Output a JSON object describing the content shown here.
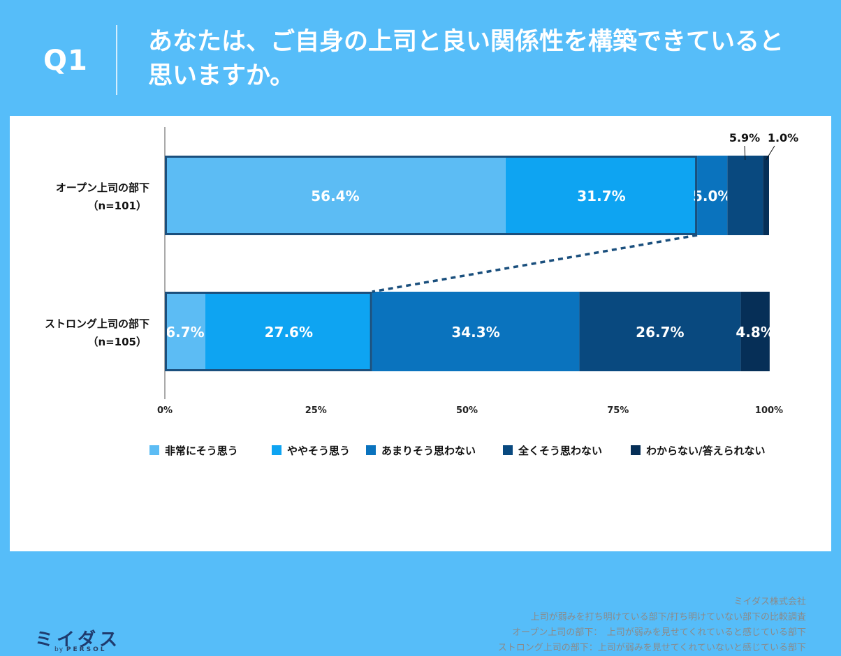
{
  "header": {
    "question_label": "Q1",
    "question_line1": "あなたは、ご自身の上司と良い関係性を構築できていると",
    "question_line2": "思いますか。"
  },
  "colors": {
    "background": "#56bdf9",
    "series": [
      "#5cbcf4",
      "#0ea4f2",
      "#0a73be",
      "#09497f",
      "#062f57"
    ],
    "outline": "#1a4f7d"
  },
  "chart_data": {
    "type": "bar",
    "orientation": "horizontal",
    "stacked": true,
    "categories": [
      {
        "name": "オープン上司の部下",
        "n": "（n=101）"
      },
      {
        "name": "ストロング上司の部下",
        "n": "（n=105）"
      }
    ],
    "series": [
      {
        "name": "非常にそう思う",
        "values": [
          56.4,
          6.7
        ]
      },
      {
        "name": "ややそう思う",
        "values": [
          31.7,
          27.6
        ]
      },
      {
        "name": "あまりそう思わない",
        "values": [
          5.0,
          34.3
        ]
      },
      {
        "name": "全くそう思わない",
        "values": [
          5.9,
          26.7
        ]
      },
      {
        "name": "わからない/答えられない",
        "values": [
          1.0,
          4.8
        ]
      }
    ],
    "data_labels": [
      [
        "56.4%",
        "31.7%",
        "5.0%",
        "5.9%",
        "1.0%"
      ],
      [
        "6.7%",
        "27.6%",
        "34.3%",
        "26.7%",
        "4.8%"
      ]
    ],
    "outside_labels": [
      [
        3,
        4
      ],
      []
    ],
    "highlight_totals": [
      88.1,
      34.3
    ],
    "x_ticks": [
      "0%",
      "25%",
      "50%",
      "75%",
      "100%"
    ],
    "xlim": [
      0,
      100
    ],
    "legend_position": "bottom"
  },
  "footer": {
    "logo_text": "ミイダス",
    "logo_by": "by",
    "logo_company": "PERSOL",
    "source_lines": [
      "ミイダス株式会社",
      "上司が弱みを打ち明けている部下/打ち明けていない部下の比較調査",
      "オープン上司の部下：　上司が弱みを見せてくれていると感じている部下",
      "ストロング上司の部下：上司が弱みを見せてくれていないと感じている部下"
    ]
  }
}
